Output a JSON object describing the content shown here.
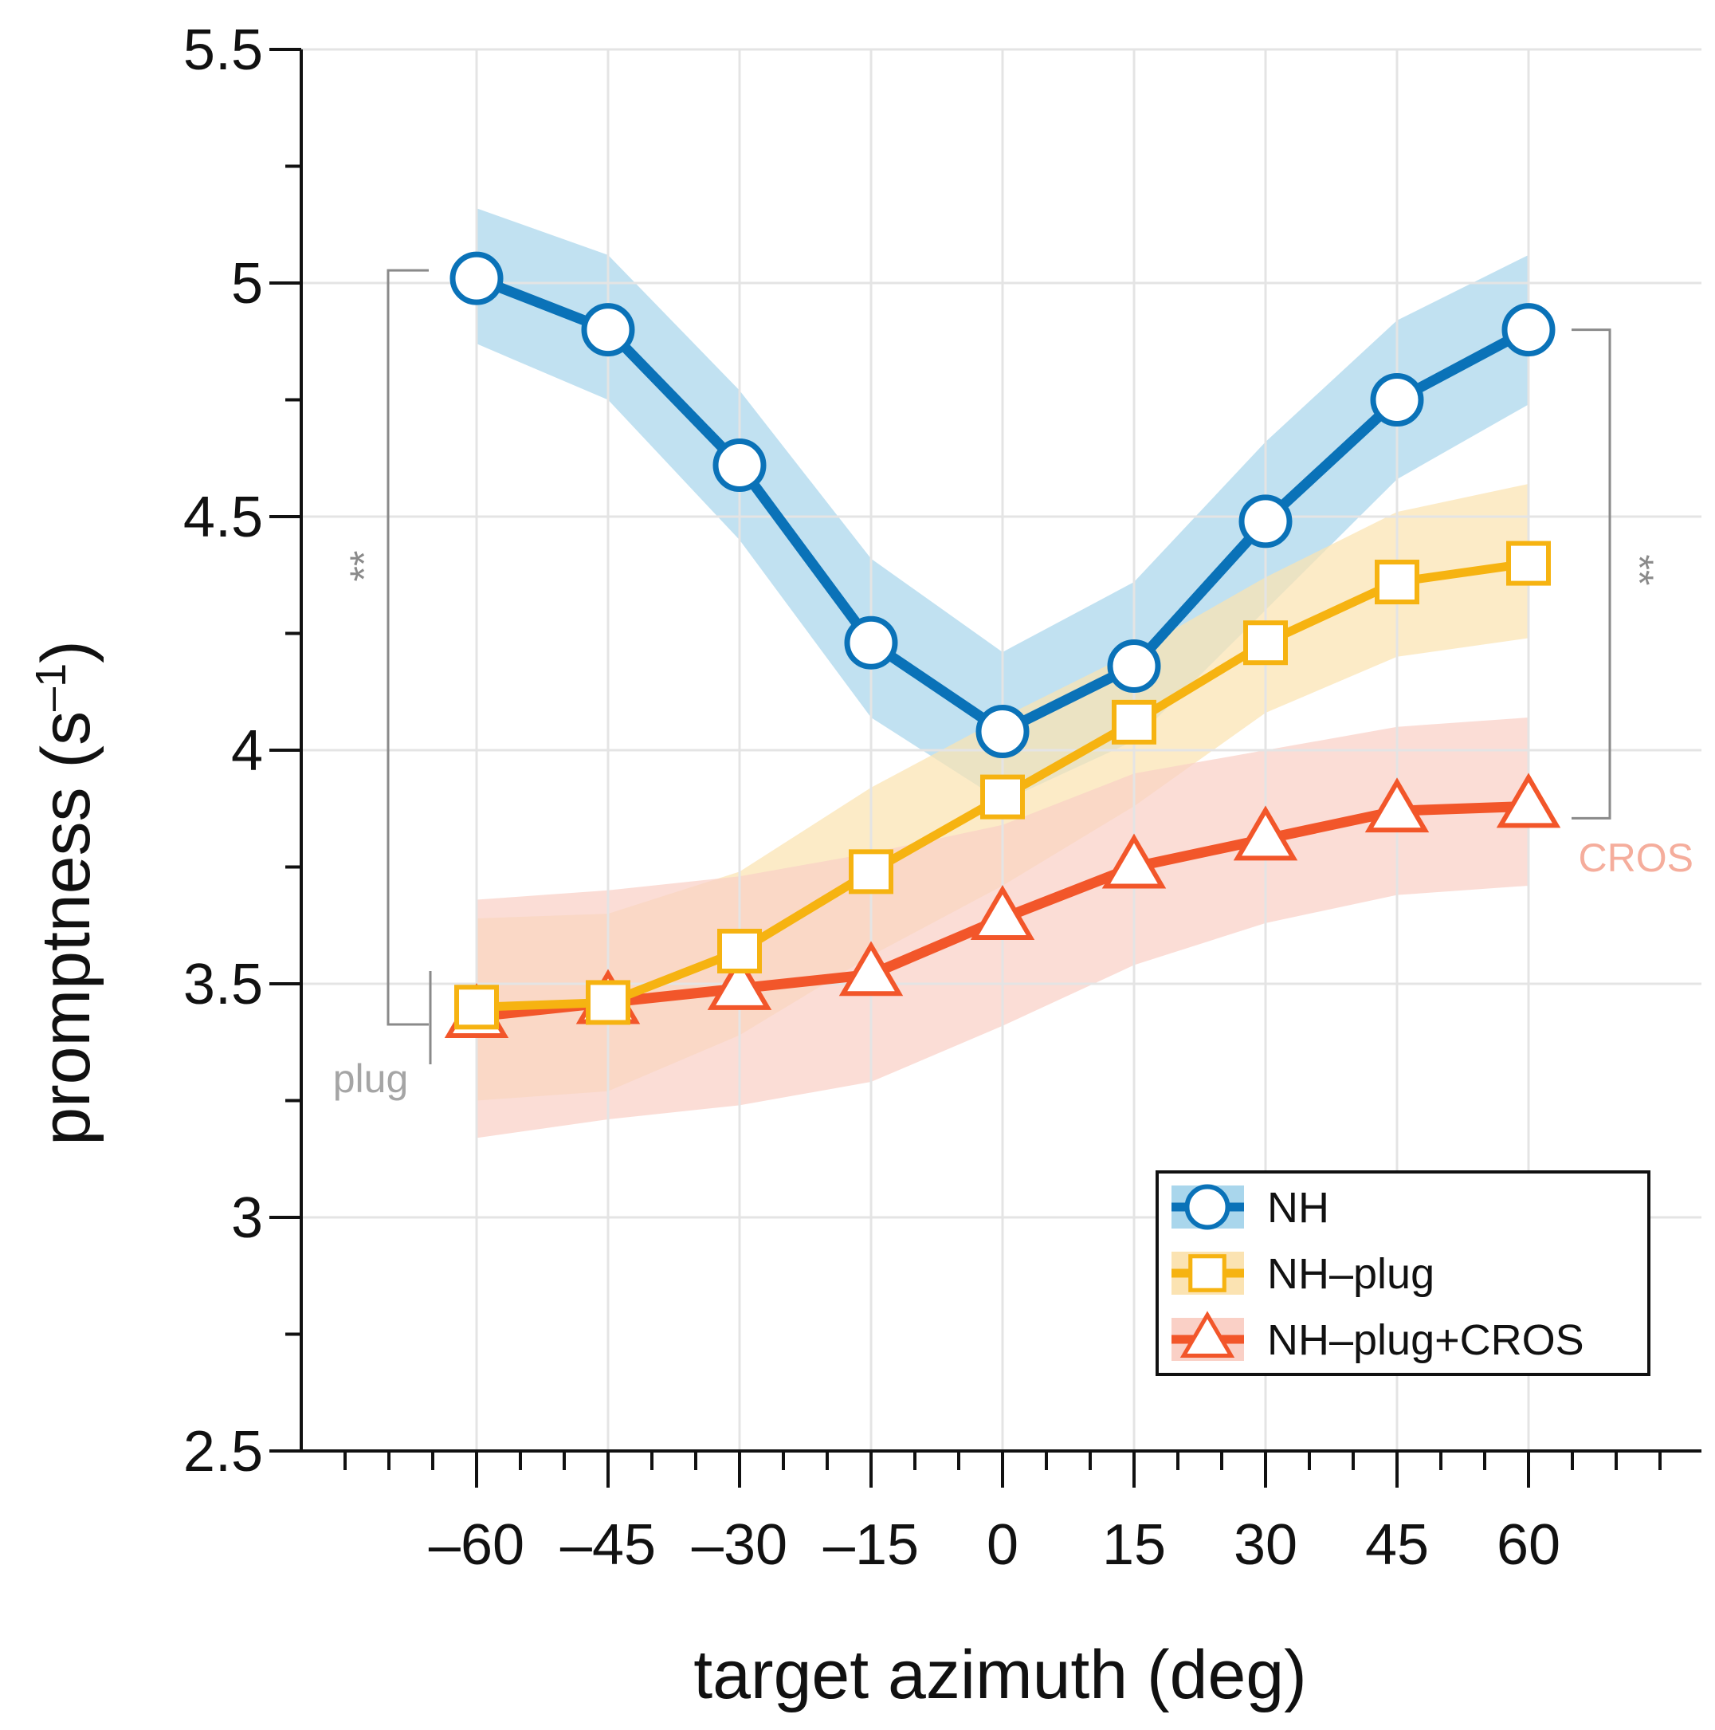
{
  "chart_data": {
    "type": "line",
    "xlabel": "target azimuth (deg)",
    "ylabel_main": "promptness (s",
    "ylabel_sup": "–1",
    "ylabel_close": ")",
    "x": [
      -60,
      -45,
      -30,
      -15,
      0,
      15,
      30,
      45,
      60
    ],
    "x_tick_labels": [
      "–60",
      "–45",
      "–30",
      "–15",
      "0",
      "15",
      "30",
      "45",
      "60"
    ],
    "xlim": [
      -80,
      80
    ],
    "ylim": [
      2.5,
      5.5
    ],
    "y_ticks": [
      2.5,
      3,
      3.5,
      4,
      4.5,
      5,
      5.5
    ],
    "y_tick_labels": [
      "2.5",
      "3",
      "3.5",
      "4",
      "4.5",
      "5",
      "5.5"
    ],
    "grid": true,
    "legend_position": "bottom-right",
    "series": [
      {
        "key": "nh",
        "name": "NH",
        "marker": "circle",
        "color": "#0a72b8",
        "band_color": "#a9d6ec",
        "values": [
          5.01,
          4.9,
          4.61,
          4.23,
          4.04,
          4.18,
          4.49,
          4.75,
          4.9
        ],
        "lower": [
          4.87,
          4.75,
          4.45,
          4.07,
          3.89,
          4.02,
          4.3,
          4.58,
          4.74
        ],
        "upper": [
          5.16,
          5.06,
          4.77,
          4.41,
          4.21,
          4.36,
          4.66,
          4.92,
          5.06
        ]
      },
      {
        "key": "plug",
        "name": "NH–plug",
        "marker": "square",
        "color": "#f6b311",
        "band_color": "#fbe3b2",
        "values": [
          3.45,
          3.46,
          3.57,
          3.74,
          3.9,
          4.06,
          4.23,
          4.36,
          4.4
        ],
        "lower": [
          3.25,
          3.27,
          3.39,
          3.56,
          3.71,
          3.88,
          4.08,
          4.2,
          4.24
        ],
        "upper": [
          3.64,
          3.65,
          3.74,
          3.92,
          4.07,
          4.21,
          4.37,
          4.51,
          4.57
        ]
      },
      {
        "key": "cros",
        "name": "NH–plug+CROS",
        "marker": "triangle",
        "color": "#f2562a",
        "band_color": "#fad0c6",
        "values": [
          3.43,
          3.46,
          3.49,
          3.52,
          3.64,
          3.75,
          3.81,
          3.87,
          3.88
        ],
        "lower": [
          3.17,
          3.21,
          3.24,
          3.29,
          3.41,
          3.54,
          3.63,
          3.69,
          3.71
        ],
        "upper": [
          3.68,
          3.7,
          3.73,
          3.78,
          3.84,
          3.95,
          4.0,
          4.05,
          4.07
        ]
      }
    ],
    "annotations": {
      "left_significance": "**",
      "right_significance": "**",
      "plug_label": "plug",
      "cros_label": "CROS",
      "bracket_color": "#8a8a8a",
      "plug_label_color": "#a5a5a5",
      "cros_label_color": "#f5ad9c"
    }
  }
}
